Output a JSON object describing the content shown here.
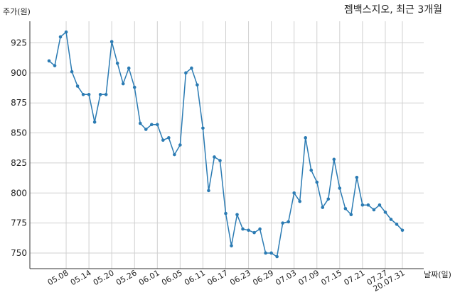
{
  "chart_data": {
    "type": "line",
    "title": "젬백스지오, 최근 3개월",
    "ylabel": "주가(원)",
    "xlabel": "날짜(일)",
    "ylim": [
      737,
      943
    ],
    "y_ticks": [
      750,
      775,
      800,
      825,
      850,
      875,
      900,
      925
    ],
    "grid": true,
    "x_tick_labels": [
      "05.08",
      "05.14",
      "05.20",
      "05.26",
      "06.01",
      "06.05",
      "06.11",
      "06.17",
      "06.23",
      "06.29",
      "07.03",
      "07.09",
      "07.15",
      "07.21",
      "07.27",
      "20.07.31"
    ],
    "x_tick_indices": [
      3,
      7,
      11,
      15,
      19,
      23,
      27,
      31,
      35,
      39,
      43,
      47,
      51,
      55,
      59,
      62
    ],
    "line_color": "#2b7bb3",
    "series": [
      {
        "values": [
          910,
          906,
          930,
          934,
          901,
          889,
          882,
          882,
          859,
          882,
          882,
          926,
          908,
          891,
          904,
          888,
          858,
          853,
          857,
          857,
          844,
          846,
          832,
          840,
          900,
          904,
          890,
          854,
          802,
          830,
          827,
          783,
          756,
          782,
          770,
          769,
          767,
          770,
          750,
          750,
          747,
          775,
          776,
          800,
          793,
          846,
          819,
          809,
          788,
          795,
          828,
          804,
          787,
          782,
          813,
          790,
          790,
          786,
          790,
          784,
          778,
          774,
          769
        ]
      }
    ]
  }
}
